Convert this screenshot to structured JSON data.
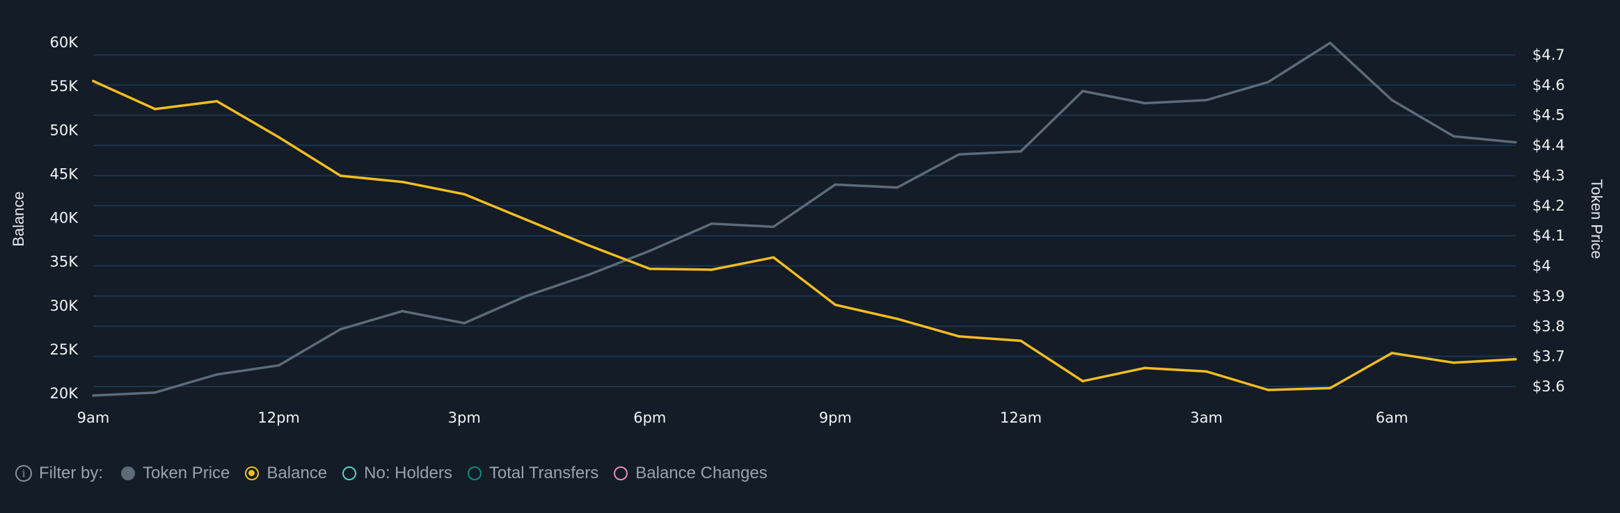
{
  "chart_data": {
    "type": "line",
    "categories": [
      "9am",
      "10am",
      "11am",
      "12pm",
      "1pm",
      "2pm",
      "3pm",
      "4pm",
      "5pm",
      "6pm",
      "7pm",
      "8pm",
      "9pm",
      "10pm",
      "11pm",
      "12am",
      "1am",
      "2am",
      "3am",
      "4am",
      "5am",
      "6am",
      "7am",
      "8am"
    ],
    "x_tick_labels": [
      "9am",
      "12pm",
      "3pm",
      "6pm",
      "9pm",
      "12am",
      "3am",
      "6am"
    ],
    "series": [
      {
        "name": "Token Price",
        "axis": "right",
        "color": "#5d6b78",
        "values": [
          3.57,
          3.58,
          3.64,
          3.67,
          3.79,
          3.85,
          3.81,
          3.9,
          3.97,
          4.05,
          4.14,
          4.13,
          4.27,
          4.26,
          4.37,
          4.38,
          4.58,
          4.54,
          4.55,
          4.61,
          4.74,
          4.55,
          4.43,
          4.41
        ]
      },
      {
        "name": "Balance",
        "axis": "left",
        "color": "#f5bd1f",
        "values": [
          55600,
          52400,
          53300,
          49200,
          44800,
          44100,
          42700,
          39800,
          36900,
          34200,
          34100,
          35500,
          30100,
          28500,
          26500,
          26000,
          21400,
          22900,
          22500,
          20400,
          20600,
          24600,
          23500,
          23900
        ]
      }
    ],
    "left_axis": {
      "title": "Balance",
      "ylim": [
        20000,
        60000
      ],
      "ticks": [
        "60K",
        "55K",
        "50K",
        "45K",
        "40K",
        "35K",
        "30K",
        "25K",
        "20K"
      ]
    },
    "right_axis": {
      "title": "Token Price",
      "ylim": [
        3.6,
        4.7
      ],
      "ticks": [
        "$4.7",
        "$4.6",
        "$4.5",
        "$4.4",
        "$4.3",
        "$4.2",
        "$4.1",
        "$4",
        "$3.9",
        "$3.8",
        "$3.7",
        "$3.6"
      ]
    },
    "grid": true,
    "grid_color": "#1c3550"
  },
  "legend": {
    "prefix": "Filter by:",
    "info_icon": "i",
    "items": [
      {
        "label": "Token Price",
        "color": "#5d6b78",
        "state": "filled"
      },
      {
        "label": "Balance",
        "color": "#f5bd1f",
        "state": "selected"
      },
      {
        "label": "No: Holders",
        "color": "#5fd3c6",
        "state": "outline"
      },
      {
        "label": "Total Transfers",
        "color": "#0e8a80",
        "state": "outline"
      },
      {
        "label": "Balance Changes",
        "color": "#f08bb8",
        "state": "outline"
      }
    ]
  }
}
